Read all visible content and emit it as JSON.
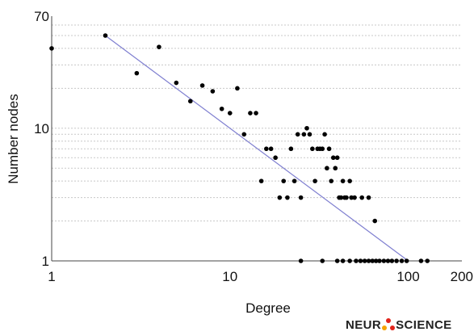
{
  "chart_data": {
    "type": "scatter",
    "title": "",
    "xlabel": "Degree",
    "ylabel": "Number nodes",
    "xscale": "log",
    "yscale": "log",
    "xlim": [
      1,
      200
    ],
    "ylim": [
      1,
      70
    ],
    "x_ticks": [
      1,
      10,
      100,
      200
    ],
    "y_ticks": [
      1,
      10,
      70
    ],
    "grid": "horizontal dotted",
    "legend": "none",
    "points": [
      [
        1,
        40
      ],
      [
        2,
        50
      ],
      [
        3,
        26
      ],
      [
        4,
        41
      ],
      [
        5,
        22
      ],
      [
        6,
        16
      ],
      [
        7,
        21
      ],
      [
        8,
        19
      ],
      [
        9,
        14
      ],
      [
        10,
        13
      ],
      [
        11,
        20
      ],
      [
        12,
        9
      ],
      [
        13,
        13
      ],
      [
        14,
        13
      ],
      [
        15,
        4
      ],
      [
        16,
        7
      ],
      [
        17,
        7
      ],
      [
        18,
        6
      ],
      [
        19,
        3
      ],
      [
        20,
        4
      ],
      [
        21,
        3
      ],
      [
        22,
        7
      ],
      [
        23,
        4
      ],
      [
        24,
        9
      ],
      [
        25,
        3
      ],
      [
        26,
        9
      ],
      [
        27,
        10
      ],
      [
        28,
        9
      ],
      [
        29,
        7
      ],
      [
        30,
        4
      ],
      [
        31,
        7
      ],
      [
        32,
        7
      ],
      [
        33,
        7
      ],
      [
        34,
        9
      ],
      [
        35,
        5
      ],
      [
        36,
        7
      ],
      [
        37,
        4
      ],
      [
        38,
        6
      ],
      [
        39,
        5
      ],
      [
        40,
        6
      ],
      [
        41,
        3
      ],
      [
        42,
        3
      ],
      [
        43,
        4
      ],
      [
        44,
        3
      ],
      [
        45,
        3
      ],
      [
        47,
        4
      ],
      [
        48,
        3
      ],
      [
        50,
        3
      ],
      [
        55,
        3
      ],
      [
        60,
        3
      ],
      [
        65,
        2
      ],
      [
        25,
        1
      ],
      [
        33,
        1
      ],
      [
        40,
        1
      ],
      [
        43,
        1
      ],
      [
        47,
        1
      ],
      [
        51,
        1
      ],
      [
        54,
        1
      ],
      [
        57,
        1
      ],
      [
        60,
        1
      ],
      [
        63,
        1
      ],
      [
        66,
        1
      ],
      [
        69,
        1
      ],
      [
        73,
        1
      ],
      [
        77,
        1
      ],
      [
        81,
        1
      ],
      [
        86,
        1
      ],
      [
        92,
        1
      ],
      [
        98,
        1
      ],
      [
        118,
        1
      ],
      [
        128,
        1
      ]
    ],
    "fit_line": {
      "x": [
        2,
        100
      ],
      "y": [
        50,
        1
      ],
      "color": "#7f7fd0"
    }
  },
  "colors": {
    "points": "#000000",
    "fit": "#7f7fd0",
    "grid": "#c8c8c8",
    "axis": "#444444"
  },
  "brand": {
    "text_left": "NEUR",
    "text_right": "SCIENCE",
    "icon": "molecule-icon"
  }
}
